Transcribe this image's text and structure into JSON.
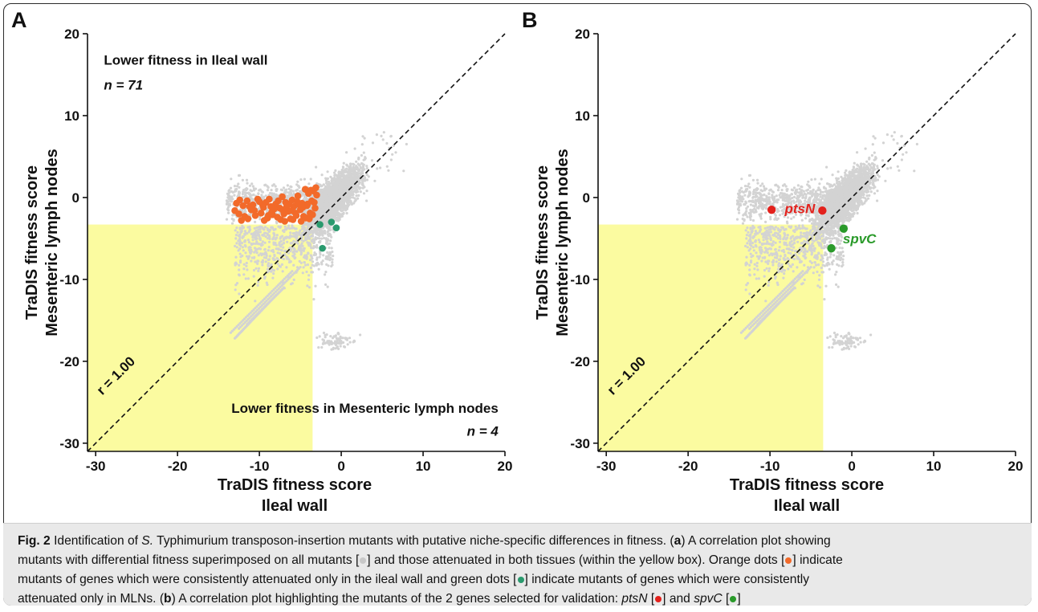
{
  "colors": {
    "background": "#d3d3d3",
    "ileal_specific": "#f26a2a",
    "mln_specific": "#2a9a6e",
    "ptsN": "#e3211c",
    "spvC": "#2a9a2a",
    "attenuated_box": "#fbfba0"
  },
  "chart_data": [
    {
      "panel": "A",
      "type": "scatter",
      "xlabel": [
        "TraDIS fitness score",
        "Ileal wall"
      ],
      "ylabel": [
        "TraDIS fitness score",
        "Mesenteric lymph nodes"
      ],
      "xlim": [
        -31,
        20
      ],
      "ylim": [
        -31,
        20
      ],
      "xticks": [
        -30,
        -20,
        -10,
        0,
        10,
        20
      ],
      "yticks": [
        -30,
        -20,
        -10,
        0,
        10,
        20
      ],
      "diagonal_label": "r = 1.00",
      "attenuated_box": {
        "x": [
          -31,
          -3.5
        ],
        "y": [
          -31,
          -3.3
        ]
      },
      "annotations": {
        "top_left": "Lower fitness in Ileal wall",
        "top_left_n": "n = 71",
        "bottom_right": "Lower fitness in Mesenteric lymph nodes",
        "bottom_right_n": "n = 4"
      },
      "series": [
        {
          "name": "Orange dots",
          "color": "#f26a2a",
          "points": [
            [
              -12.5,
              -2
            ],
            [
              -12,
              -1
            ],
            [
              -11.5,
              -0.4
            ],
            [
              -11,
              -1.5
            ],
            [
              -10.5,
              -2.2
            ],
            [
              -10,
              -0.5
            ],
            [
              -9.5,
              -1.2
            ],
            [
              -9,
              -2.5
            ],
            [
              -8.8,
              -0.2
            ],
            [
              -8.5,
              -1.8
            ],
            [
              -8,
              -0.8
            ],
            [
              -7.8,
              -2.4
            ],
            [
              -7.5,
              -1.3
            ],
            [
              -7.2,
              0.1
            ],
            [
              -7,
              -2
            ],
            [
              -6.8,
              -0.6
            ],
            [
              -6.5,
              -1.7
            ],
            [
              -6.2,
              -2.6
            ],
            [
              -6,
              -0.3
            ],
            [
              -5.8,
              -1.1
            ],
            [
              -5.5,
              -2.2
            ],
            [
              -5.3,
              0.2
            ],
            [
              -5,
              -1.5
            ],
            [
              -4.8,
              -0.7
            ],
            [
              -4.6,
              -2.3
            ],
            [
              -4.4,
              1
            ],
            [
              -4.2,
              -1
            ],
            [
              -4,
              0.5
            ],
            [
              -3.8,
              -1.9
            ],
            [
              -3.6,
              -0.4
            ],
            [
              -3.4,
              0.8
            ],
            [
              -3.2,
              -1.3
            ],
            [
              -3,
              0.3
            ],
            [
              -12.8,
              -0.7
            ],
            [
              -11.8,
              -2.3
            ],
            [
              -10.8,
              -0.9
            ],
            [
              -9.8,
              -1.9
            ],
            [
              -9.2,
              -0.6
            ],
            [
              -8.2,
              -1.4
            ],
            [
              -7.4,
              -2.7
            ],
            [
              -6.7,
              -1.2
            ],
            [
              -5.9,
              -2.7
            ],
            [
              -5.1,
              -0.9
            ],
            [
              -4.3,
              -2.5
            ],
            [
              -3.7,
              0.9
            ],
            [
              -3.3,
              -0.6
            ],
            [
              -13,
              -1.6
            ],
            [
              -12.2,
              -2.8
            ],
            [
              -11.2,
              -1.1
            ],
            [
              -10.2,
              -0.2
            ],
            [
              -9.4,
              -2.8
            ],
            [
              -8.6,
              -1.1
            ],
            [
              -7.7,
              -0.4
            ],
            [
              -6.9,
              -2.9
            ],
            [
              -6.1,
              -1.6
            ],
            [
              -5.4,
              -0.5
            ],
            [
              -4.9,
              -2.9
            ],
            [
              -4.1,
              -0.8
            ],
            [
              -3.5,
              -2.1
            ],
            [
              -3.1,
              1.2
            ],
            [
              -10.6,
              -1.6
            ],
            [
              -9.6,
              -0.9
            ],
            [
              -8.4,
              -2.1
            ],
            [
              -7.1,
              -1.6
            ],
            [
              -6.4,
              -0.8
            ],
            [
              -5.6,
              -1.9
            ],
            [
              -4.7,
              -1.2
            ],
            [
              -3.9,
              -2.6
            ],
            [
              -12.4,
              -0.3
            ],
            [
              -11.4,
              -2.6
            ],
            [
              -8.9,
              -2.2
            ]
          ]
        },
        {
          "name": "Green dots",
          "color": "#2a9a6e",
          "points": [
            [
              -1.2,
              -3
            ],
            [
              -2.6,
              -3.3
            ],
            [
              -0.6,
              -3.7
            ],
            [
              -2.3,
              -6.2
            ]
          ]
        }
      ]
    },
    {
      "panel": "B",
      "type": "scatter",
      "xlabel": [
        "TraDIS fitness score",
        "Ileal wall"
      ],
      "ylabel": [
        "TraDIS fitness score",
        "Mesenteric lymph nodes"
      ],
      "xlim": [
        -31,
        20
      ],
      "ylim": [
        -31,
        20
      ],
      "xticks": [
        -30,
        -20,
        -10,
        0,
        10,
        20
      ],
      "yticks": [
        -30,
        -20,
        -10,
        0,
        10,
        20
      ],
      "diagonal_label": "r = 1.00",
      "attenuated_box": {
        "x": [
          -31,
          -3.5
        ],
        "y": [
          -31,
          -3.3
        ]
      },
      "series": [
        {
          "name": "ptsN",
          "color": "#e3211c",
          "points": [
            [
              -9.8,
              -1.5
            ],
            [
              -3.6,
              -1.6
            ]
          ]
        },
        {
          "name": "spvC",
          "color": "#2a9a2a",
          "points": [
            [
              -1,
              -3.8
            ],
            [
              -2.5,
              -6.2
            ]
          ]
        }
      ]
    }
  ],
  "caption": {
    "fig_label": "Fig. 2",
    "line1_pre": " Identification of ",
    "species_italic": "S.",
    "line1_post": " Typhimurium transposon-insertion mutants with putative niche-specific differences in fitness. (",
    "a": "a",
    "line1_end": ") A correlation plot showing",
    "line2": "mutants with differential fitness superimposed on all mutants [",
    "line2_post": "] and those attenuated in both tissues (within the yellow box). Orange dots [",
    "line2_end": "] indicate",
    "line3_pre": "mutants of genes which were consistently attenuated only in the ileal wall and green dots [",
    "line3_end": "] indicate mutants of genes which were consistently",
    "line4_pre": "attenuated only in MLNs. (",
    "b": "b",
    "line4_mid": ") A correlation plot highlighting the mutants of the 2 genes selected for validation: ",
    "gene1": "ptsN",
    "line4_and": " [",
    "line4_and2": "] and ",
    "gene2": "spvC",
    "line4_open": " [",
    "line4_close": "]"
  }
}
